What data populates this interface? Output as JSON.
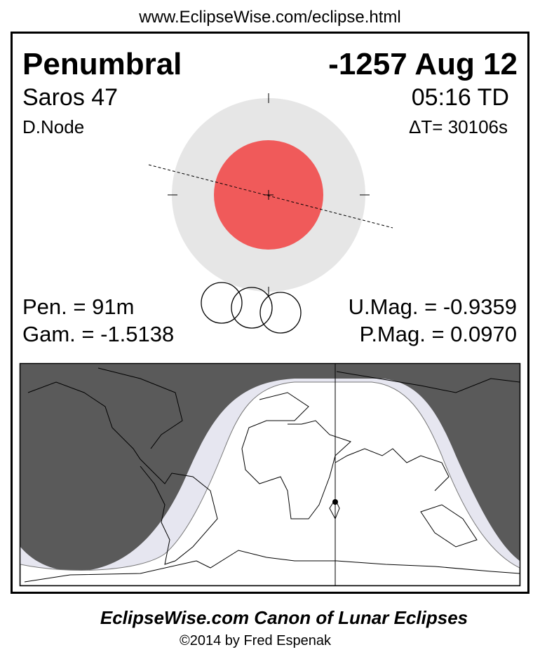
{
  "url": "www.EclipseWise.com/eclipse.html",
  "eclipse": {
    "type": "Penumbral",
    "date": "-1257 Aug 12",
    "saros": "Saros  47",
    "time": "05:16 TD",
    "node": "D.Node",
    "delta_t": "ΔT=  30106s",
    "pen_duration": "Pen. =  91m",
    "gamma": "Gam. = -1.5138",
    "umbral_mag": "U.Mag. = -0.9359",
    "penumbral_mag": "P.Mag. = 0.0970"
  },
  "colors": {
    "penumbra": "#e6e6e6",
    "umbra": "#f05a5a",
    "night": "#5a5a5a",
    "penumbral_zone": "#e6e6f0",
    "day": "#ffffff"
  },
  "footer": {
    "title": "EclipseWise.com Canon of Lunar Eclipses",
    "copyright": "©2014 by Fred Espenak"
  }
}
